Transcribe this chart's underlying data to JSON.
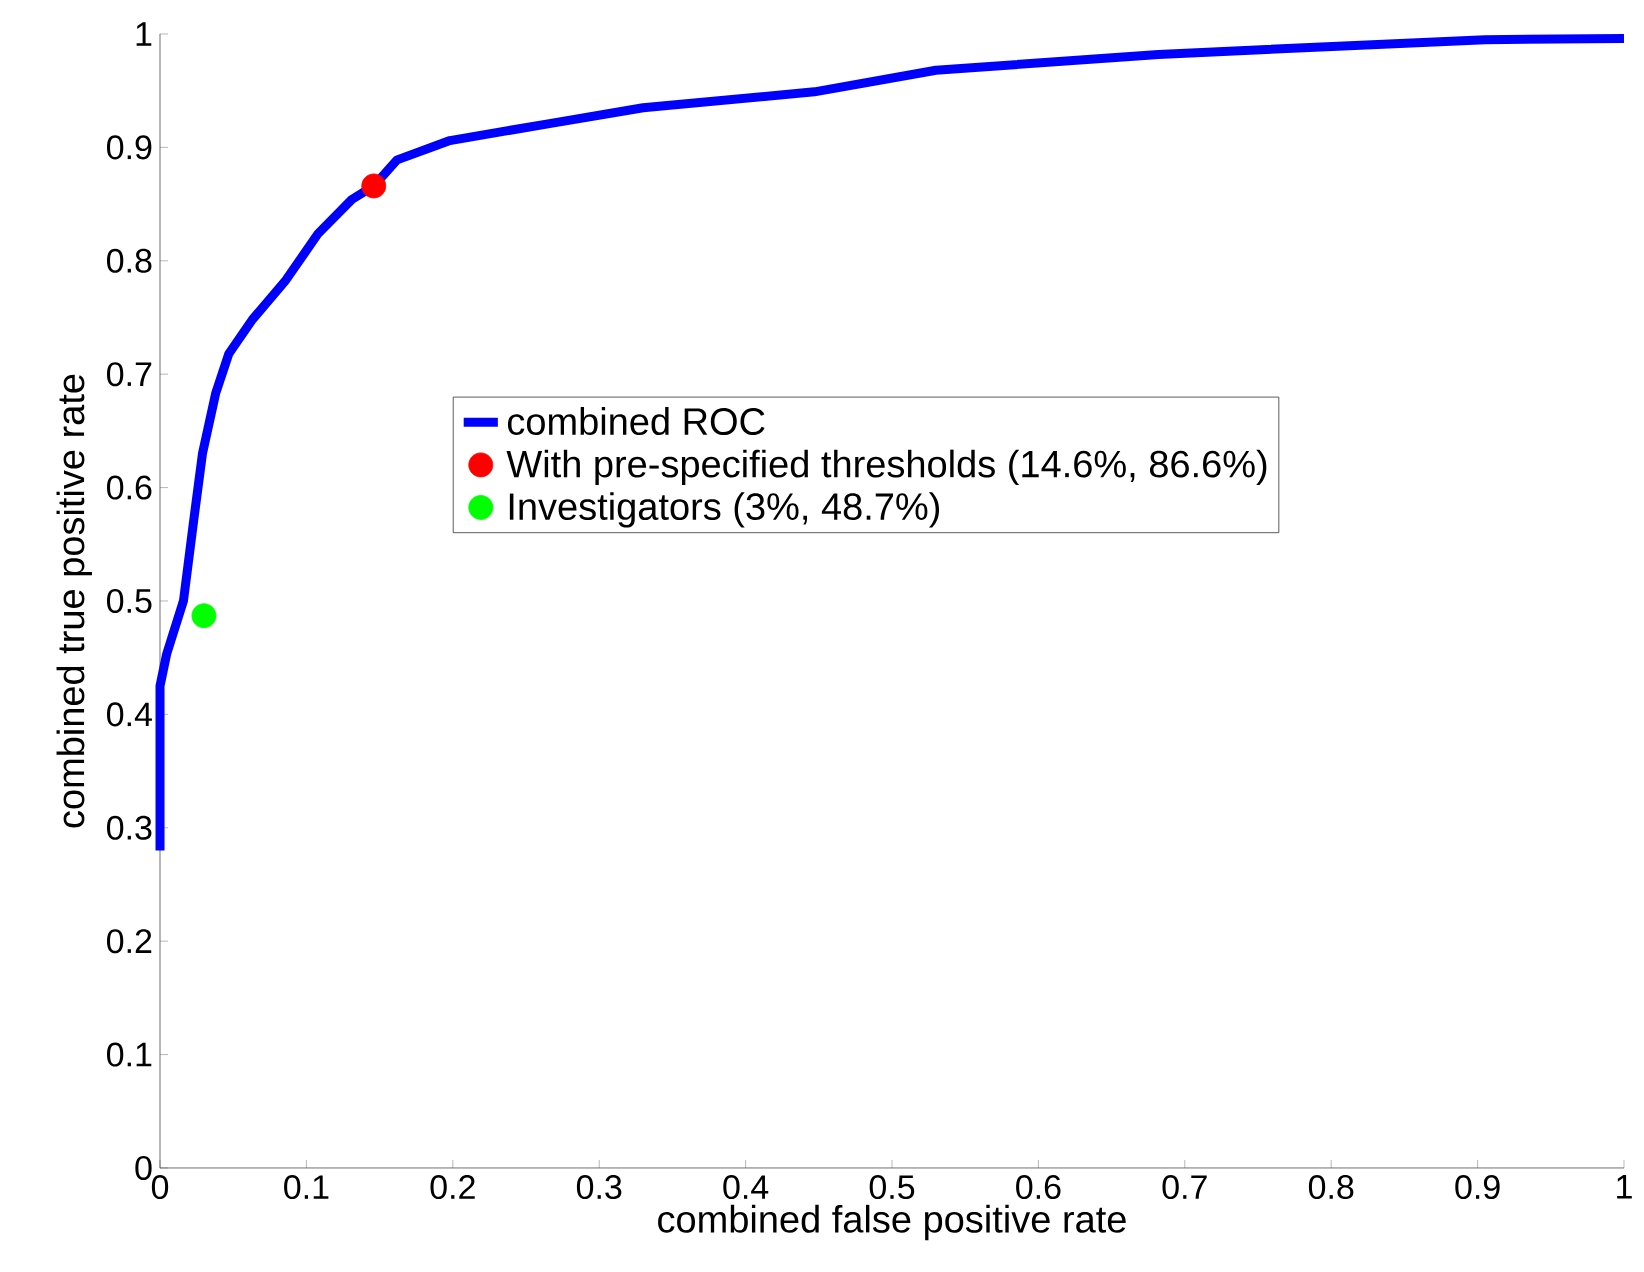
{
  "chart_data": {
    "type": "line",
    "xlabel": "combined false positive rate",
    "ylabel": "combined true positive rate",
    "xlim": [
      0,
      1
    ],
    "ylim": [
      0,
      1
    ],
    "xticks": [
      0,
      0.1,
      0.2,
      0.3,
      0.4,
      0.5,
      0.6,
      0.7,
      0.8,
      0.9,
      1
    ],
    "yticks": [
      0,
      0.1,
      0.2,
      0.3,
      0.4,
      0.5,
      0.6,
      0.7,
      0.8,
      0.9,
      1
    ],
    "legend": "right",
    "grid": false,
    "series": [
      {
        "name": "combined ROC",
        "color": "#0000ff",
        "marker": "none",
        "x": [
          0,
          0,
          0.0045,
          0.016,
          0.023,
          0.029,
          0.038,
          0.047,
          0.063,
          0.086,
          0.108,
          0.131,
          0.146,
          0.162,
          0.198,
          0.266,
          0.33,
          0.447,
          0.53,
          0.682,
          0.905,
          1
        ],
        "values": [
          0.28,
          0.425,
          0.453,
          0.5,
          0.571,
          0.63,
          0.683,
          0.718,
          0.748,
          0.783,
          0.824,
          0.854,
          0.866,
          0.889,
          0.906,
          0.921,
          0.935,
          0.949,
          0.968,
          0.982,
          0.995,
          0.996
        ]
      },
      {
        "name": "With pre-specified thresholds (14.6%, 86.6%)",
        "type": "scatter",
        "color": "#ff0000",
        "marker": "circle",
        "x": [
          0.146
        ],
        "values": [
          0.866
        ]
      },
      {
        "name": "Investigators (3%, 48.7%)",
        "type": "scatter",
        "color": "#00ff00",
        "marker": "circle",
        "x": [
          0.03
        ],
        "values": [
          0.487
        ]
      }
    ]
  }
}
